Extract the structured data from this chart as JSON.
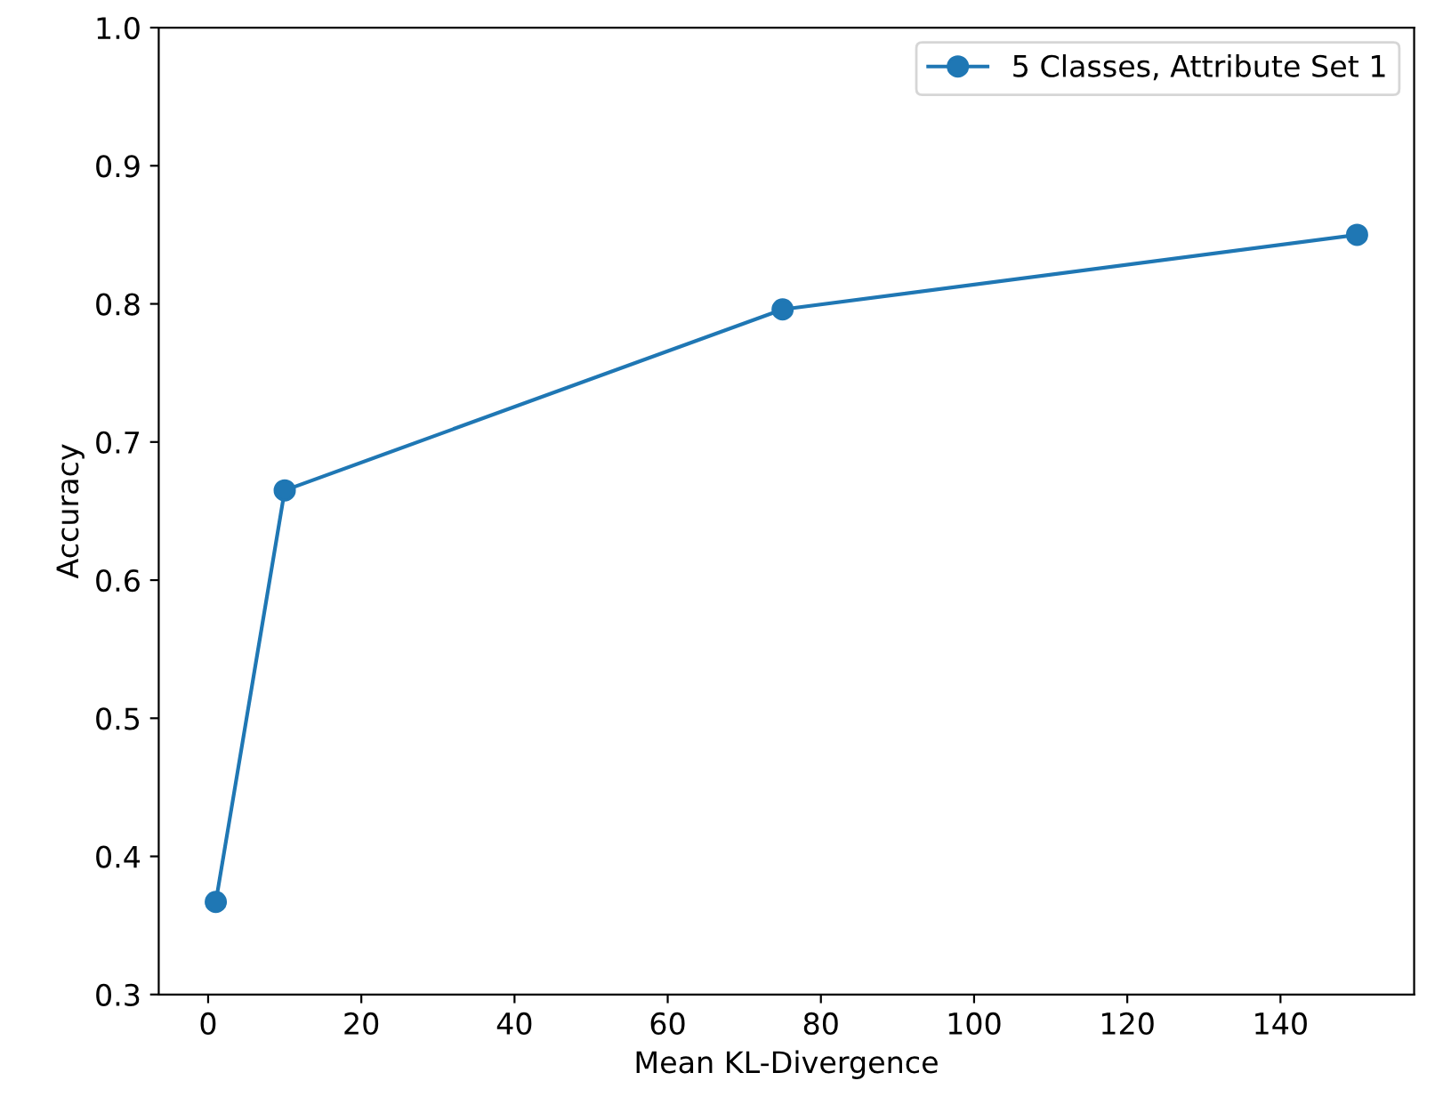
{
  "chart_data": {
    "type": "line",
    "xlabel": "Mean KL-Divergence",
    "ylabel": "Accuracy",
    "x": [
      1,
      10,
      75,
      150
    ],
    "series": [
      {
        "name": "5 Classes, Attribute Set 1",
        "color": "#1f77b4",
        "values": [
          0.367,
          0.665,
          0.796,
          0.85
        ]
      }
    ],
    "xlim": [
      -6.45,
      157.45
    ],
    "xticks": [
      0,
      20,
      40,
      60,
      80,
      100,
      120,
      140
    ],
    "ylim": [
      0.3,
      1.0
    ],
    "yticks": [
      0.3,
      0.4,
      0.5,
      0.6,
      0.7,
      0.8,
      0.9,
      {
        "value": 1,
        "label": "1.0"
      }
    ],
    "marker": "circle",
    "line_style": "solid",
    "legend": "top right",
    "grid": false
  }
}
